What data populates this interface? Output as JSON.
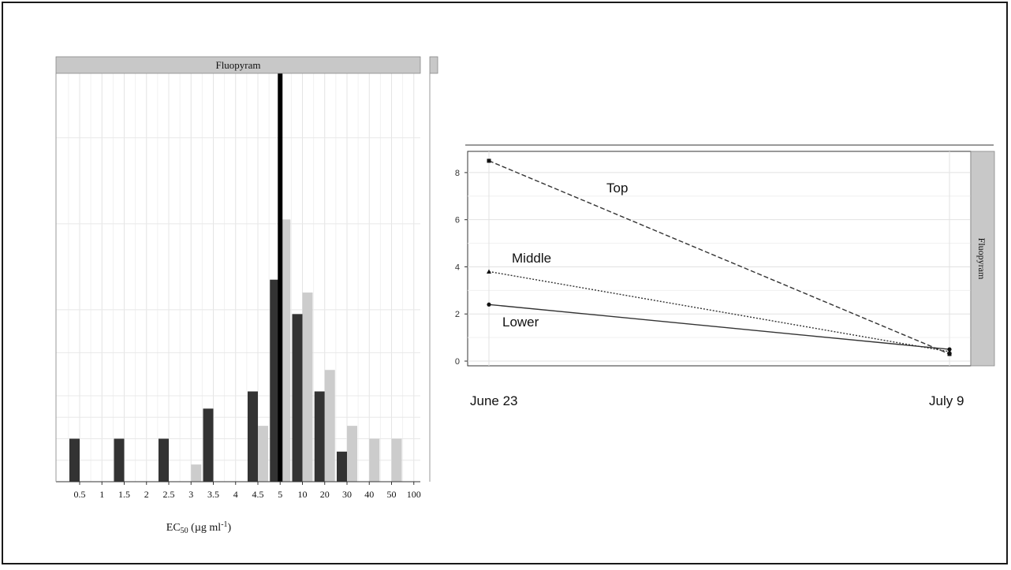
{
  "chart_data": [
    {
      "type": "bar",
      "facet_label": "Fluopyram",
      "xlabel": "EC50 (µg ml-1)",
      "xlabel_parts": {
        "main": "EC",
        "sub": "50",
        "rest": " (µg ml",
        "sup": "-1",
        "end": ")"
      },
      "categories": [
        "0.5",
        "1",
        "1.5",
        "2",
        "2.5",
        "3",
        "3.5",
        "4",
        "4.5",
        "5",
        "10",
        "20",
        "30",
        "40",
        "50",
        "100"
      ],
      "series": [
        {
          "color": "#333333",
          "values": [
            1,
            0,
            1,
            0,
            1,
            0,
            1.7,
            0,
            2.1,
            4.7,
            3.9,
            2.1,
            0.7,
            0,
            0,
            0
          ]
        },
        {
          "color": "#cccccc",
          "values": [
            0,
            0,
            0,
            0,
            0,
            0.4,
            0,
            0,
            1.3,
            6.1,
            4.4,
            2.6,
            1.3,
            1,
            1,
            0
          ]
        }
      ],
      "reference_line_category": "5",
      "ylim": [
        0,
        9.5
      ],
      "grid": true
    },
    {
      "type": "line",
      "facet_label": "Fluopyram",
      "x": [
        "June 23",
        "July 9"
      ],
      "series": [
        {
          "name": "Top",
          "values": [
            8.5,
            0.3
          ],
          "marker": "square",
          "dash": "dashed"
        },
        {
          "name": "Middle",
          "values": [
            3.8,
            0.4
          ],
          "marker": "triangle",
          "dash": "dotted"
        },
        {
          "name": "Lower",
          "values": [
            2.4,
            0.5
          ],
          "marker": "circle",
          "dash": "solid"
        }
      ],
      "yticks": [
        "0",
        "2",
        "4",
        "6",
        "8"
      ],
      "ylim": [
        -0.2,
        8.9
      ],
      "grid": true
    }
  ]
}
